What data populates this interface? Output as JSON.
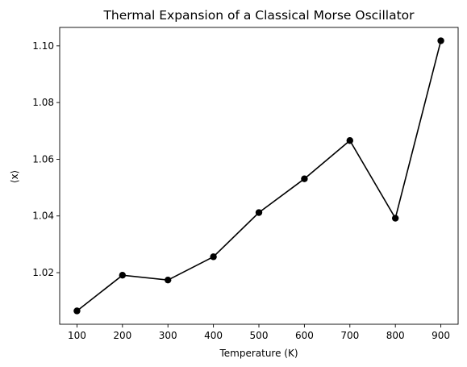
{
  "chart_data": {
    "type": "line",
    "title": "Thermal Expansion of a Classical Morse Oscillator",
    "xlabel": "Temperature (K)",
    "ylabel": "⟨x⟩",
    "x": [
      100,
      200,
      300,
      400,
      500,
      600,
      700,
      800,
      900
    ],
    "series": [
      {
        "values": [
          1.0065,
          1.0191,
          1.0174,
          1.0256,
          1.0412,
          1.0531,
          1.0666,
          1.0392,
          1.1018
        ],
        "color": "#000000",
        "marker": "circle"
      }
    ],
    "xlim": [
      62,
      938
    ],
    "ylim": [
      1.0018,
      1.1065
    ],
    "xticks": [
      100,
      200,
      300,
      400,
      500,
      600,
      700,
      800,
      900
    ],
    "xtick_labels": [
      "100",
      "200",
      "300",
      "400",
      "500",
      "600",
      "700",
      "800",
      "900"
    ],
    "yticks": [
      1.02,
      1.04,
      1.06,
      1.08,
      1.1
    ],
    "ytick_labels": [
      "1.02",
      "1.04",
      "1.06",
      "1.08",
      "1.10"
    ],
    "grid": false,
    "legend": "none"
  }
}
